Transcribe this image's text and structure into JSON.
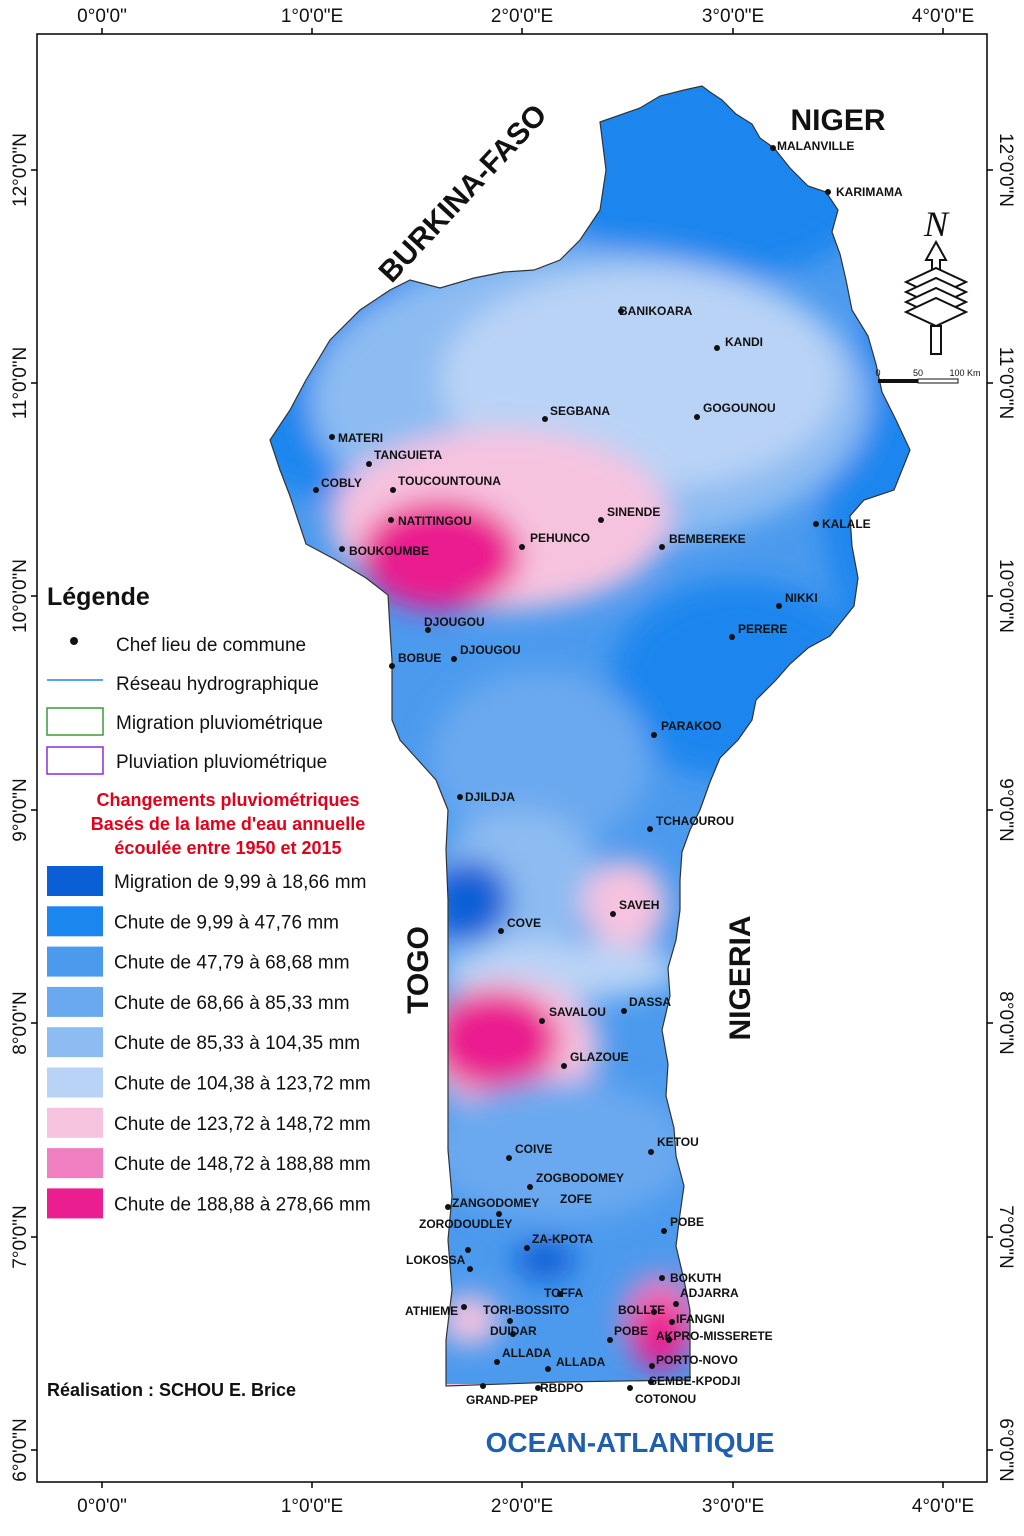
{
  "map": {
    "axis": {
      "lon_labels": [
        "0°0'0\"",
        "1°0'0\"E",
        "2°0'0\"E",
        "3°0'0\"E",
        "4°0'0\"E"
      ],
      "lat_labels": [
        "12°0'0\"N",
        "11°0'0\"N",
        "10°0'0\"N",
        "9°0'0\"N",
        "8°0'0\"N",
        "7°0'0\"N",
        "6°0'0\"N"
      ]
    },
    "countries": {
      "burkina": "BURKINA-FASO",
      "niger": "NIGER",
      "togo": "TOGO",
      "nigeria": "NIGERIA"
    },
    "ocean": "OCEAN-ATLANTIQUE",
    "north_letter": "N",
    "scale": {
      "zero": "0",
      "mid": "50",
      "end": "100 Km"
    },
    "credit": "Réalisation : SCHOU E. Brice",
    "towns": [
      {
        "name": "MALANVILLE"
      },
      {
        "name": "KARIMAMA"
      },
      {
        "name": "BANIKOARA"
      },
      {
        "name": "KANDI"
      },
      {
        "name": "SEGBANA"
      },
      {
        "name": "GOGOUNOU"
      },
      {
        "name": "MATERI"
      },
      {
        "name": "TANGUIETA"
      },
      {
        "name": "COBLY"
      },
      {
        "name": "TOUCOUNTOUNA"
      },
      {
        "name": "NATITINGOU"
      },
      {
        "name": "SINENDE"
      },
      {
        "name": "PEHUNCO"
      },
      {
        "name": "BEMBEREKE"
      },
      {
        "name": "KALALE"
      },
      {
        "name": "BOUKOUMBE"
      },
      {
        "name": "NIKKI"
      },
      {
        "name": "DJOUGOU"
      },
      {
        "name": "PERERE"
      },
      {
        "name": "BOBUE"
      },
      {
        "name": "DJOUGOU"
      },
      {
        "name": "PARAKOO"
      },
      {
        "name": "DJILDJA"
      },
      {
        "name": "TCHAOUROU"
      },
      {
        "name": "SAVEH"
      },
      {
        "name": "COVE"
      },
      {
        "name": "SAVALOU"
      },
      {
        "name": "DASSA"
      },
      {
        "name": "GLAZOUE"
      },
      {
        "name": "COIVE"
      },
      {
        "name": "KETOU"
      },
      {
        "name": "ZOGBODOMEY"
      },
      {
        "name": "ZANGODOMEY"
      },
      {
        "name": "ZOFE"
      },
      {
        "name": "ZORODOUDLEY"
      },
      {
        "name": "POBE"
      },
      {
        "name": "ZA-KPOTA"
      },
      {
        "name": "LOKOSSA"
      },
      {
        "name": "BOKUTH"
      },
      {
        "name": "TOFFA"
      },
      {
        "name": "ADJARRA"
      },
      {
        "name": "ATHIEME"
      },
      {
        "name": "TORI-BOSSITO"
      },
      {
        "name": "BOLLTE"
      },
      {
        "name": "IFANGNI"
      },
      {
        "name": "DUIDAR"
      },
      {
        "name": "POBE"
      },
      {
        "name": "AKPRO-MISSERETE"
      },
      {
        "name": "ALLADA"
      },
      {
        "name": "ALLADA"
      },
      {
        "name": "PORTO-NOVO"
      },
      {
        "name": "SEMBE-KPODJI"
      },
      {
        "name": "RBDPO"
      },
      {
        "name": "GRAND-PEP"
      },
      {
        "name": "COTONOU"
      }
    ],
    "legend": {
      "title": "Légende",
      "chef_lieu": "Chef lieu de commune",
      "reseau": "Réseau hydrographique",
      "migration": "Migration pluviométrique",
      "pluviation": "Pluviation pluviométrique",
      "subtitle_lines": [
        "Changements pluviométriques",
        "Basés de la lame d'eau annuelle",
        "écoulée entre 1950 et 2015"
      ],
      "classes": [
        {
          "label": "Migration de 9,99 à 18,66 mm",
          "color": "#0a5fd6"
        },
        {
          "label": "Chute de 9,99 à 47,76 mm",
          "color": "#1a86ee"
        },
        {
          "label": "Chute de 47,79 à 68,68 mm",
          "color": "#4b9aee"
        },
        {
          "label": "Chute de 68,66 à 85,33 mm",
          "color": "#6aa9ef"
        },
        {
          "label": "Chute de 85,33 à 104,35 mm",
          "color": "#8dbcf2"
        },
        {
          "label": "Chute de 104,38 à 123,72 mm",
          "color": "#b9d3f6"
        },
        {
          "label": "Chute de 123,72 à 148,72 mm",
          "color": "#f6c3df"
        },
        {
          "label": "Chute de 148,72 à 188,88 mm",
          "color": "#f07fc2"
        },
        {
          "label": "Chute de 188,88 à 278,66 mm",
          "color": "#ea1e8f"
        }
      ]
    }
  }
}
